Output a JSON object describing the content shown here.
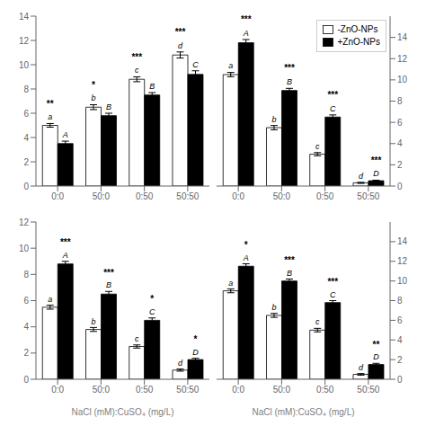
{
  "chart_data": [
    {
      "type": "bar",
      "categories": [
        "0:0",
        "50:0",
        "0:50",
        "50:50"
      ],
      "series": [
        {
          "name": "-ZnO-NPs",
          "color": "white",
          "values": [
            5.0,
            6.5,
            8.8,
            10.8
          ],
          "errors": [
            0.15,
            0.2,
            0.2,
            0.25
          ],
          "labels": [
            "a",
            "b",
            "c",
            "d"
          ]
        },
        {
          "name": "+ZnO-NPs",
          "color": "black",
          "values": [
            3.5,
            5.8,
            7.5,
            9.2
          ],
          "errors": [
            0.2,
            0.2,
            0.2,
            0.3
          ],
          "labels": [
            "A",
            "B",
            "B",
            "C"
          ]
        }
      ],
      "annotations": [
        "**",
        "*",
        "***",
        "***"
      ],
      "ylim": [
        0,
        14
      ],
      "yticks": [
        0,
        2,
        4,
        6,
        8,
        10,
        12,
        14
      ]
    },
    {
      "type": "bar",
      "categories": [
        "0:0",
        "50:0",
        "0:50",
        "50:50"
      ],
      "series": [
        {
          "name": "-ZnO-NPs",
          "color": "white",
          "values": [
            10.5,
            5.5,
            3.0,
            0.3
          ],
          "errors": [
            0.2,
            0.2,
            0.15,
            0.05
          ],
          "labels": [
            "a",
            "b",
            "c",
            "d"
          ]
        },
        {
          "name": "+ZnO-NPs",
          "color": "black",
          "values": [
            13.5,
            9.0,
            6.5,
            0.5
          ],
          "errors": [
            0.3,
            0.2,
            0.2,
            0.05
          ],
          "labels": [
            "A",
            "B",
            "C",
            "D"
          ]
        }
      ],
      "annotations": [
        "***",
        "***",
        "***",
        "***"
      ],
      "ylim": [
        0,
        16
      ],
      "yticks": [
        0,
        2,
        4,
        6,
        8,
        10,
        12,
        14
      ],
      "legend": "upper right"
    },
    {
      "type": "bar",
      "categories": [
        "0:0",
        "50:0",
        "0:50",
        "50:50"
      ],
      "series": [
        {
          "name": "-ZnO-NPs",
          "color": "white",
          "values": [
            5.5,
            3.8,
            2.5,
            0.7
          ],
          "errors": [
            0.15,
            0.15,
            0.12,
            0.08
          ],
          "labels": [
            "a",
            "b",
            "c",
            "d"
          ]
        },
        {
          "name": "+ZnO-NPs",
          "color": "black",
          "values": [
            8.8,
            6.5,
            4.5,
            1.5
          ],
          "errors": [
            0.2,
            0.2,
            0.18,
            0.1
          ],
          "labels": [
            "A",
            "B",
            "C",
            "D"
          ]
        }
      ],
      "annotations": [
        "***",
        "***",
        "*",
        "*"
      ],
      "ylim": [
        0,
        12
      ],
      "yticks": [
        0,
        2,
        4,
        6,
        8,
        10,
        12
      ],
      "xlabel": "NaCl (mM):CuSO₄ (mg/L)"
    },
    {
      "type": "bar",
      "categories": [
        "0:0",
        "50:0",
        "0:50",
        "50:50"
      ],
      "series": [
        {
          "name": "-ZnO-NPs",
          "color": "white",
          "values": [
            9.0,
            6.5,
            5.0,
            0.5
          ],
          "errors": [
            0.2,
            0.2,
            0.18,
            0.08
          ],
          "labels": [
            "a",
            "b",
            "c",
            "d"
          ]
        },
        {
          "name": "+ZnO-NPs",
          "color": "black",
          "values": [
            11.5,
            10.0,
            7.8,
            1.5
          ],
          "errors": [
            0.25,
            0.2,
            0.2,
            0.12
          ],
          "labels": [
            "A",
            "B",
            "C",
            "D"
          ]
        }
      ],
      "annotations": [
        "*",
        "***",
        "***",
        "**"
      ],
      "ylim": [
        0,
        16
      ],
      "yticks": [
        0,
        2,
        4,
        6,
        8,
        10,
        12,
        14
      ],
      "xlabel": "NaCl (mM):CuSO₄ (mg/L)"
    }
  ]
}
